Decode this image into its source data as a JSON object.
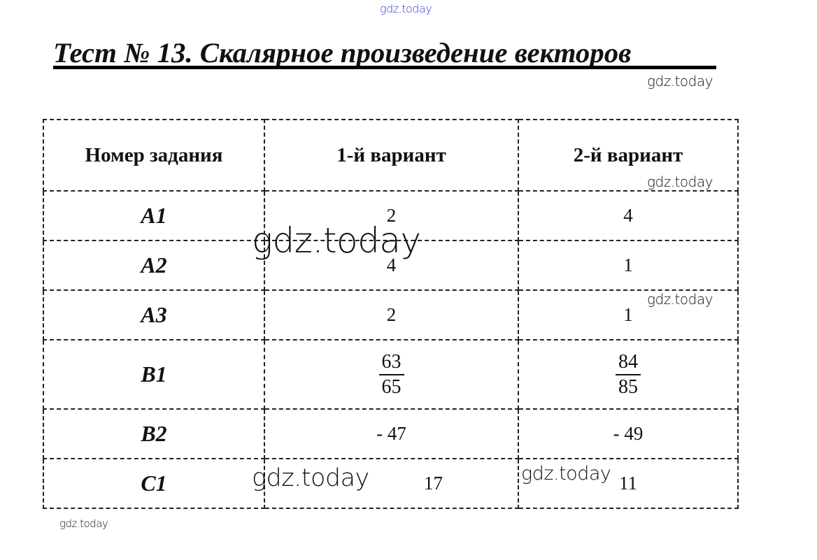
{
  "title": "Тест № 13. Скалярное произведение векторов",
  "table": {
    "headers": [
      "Номер задания",
      "1-й вариант",
      "2-й вариант"
    ],
    "rows": [
      {
        "task": "A1",
        "v1": "2",
        "v2": "4"
      },
      {
        "task": "A2",
        "v1": "4",
        "v2": "1"
      },
      {
        "task": "A3",
        "v1": "2",
        "v2": "1"
      },
      {
        "task": "B1",
        "v1_num": "63",
        "v1_den": "65",
        "v2_num": "84",
        "v2_den": "85"
      },
      {
        "task": "B2",
        "v1": "- 47",
        "v2": "- 49"
      },
      {
        "task": "C1",
        "v1": "17",
        "v2": "11"
      }
    ]
  },
  "watermarks": [
    "gdz.today",
    "gdz.today",
    "gdz.today",
    "gdz.today",
    "gdz.today",
    "gdz.today",
    "gdz.today",
    "gdz.today"
  ],
  "colors": {
    "top_watermark": "#3333cc",
    "text": "#111111"
  }
}
